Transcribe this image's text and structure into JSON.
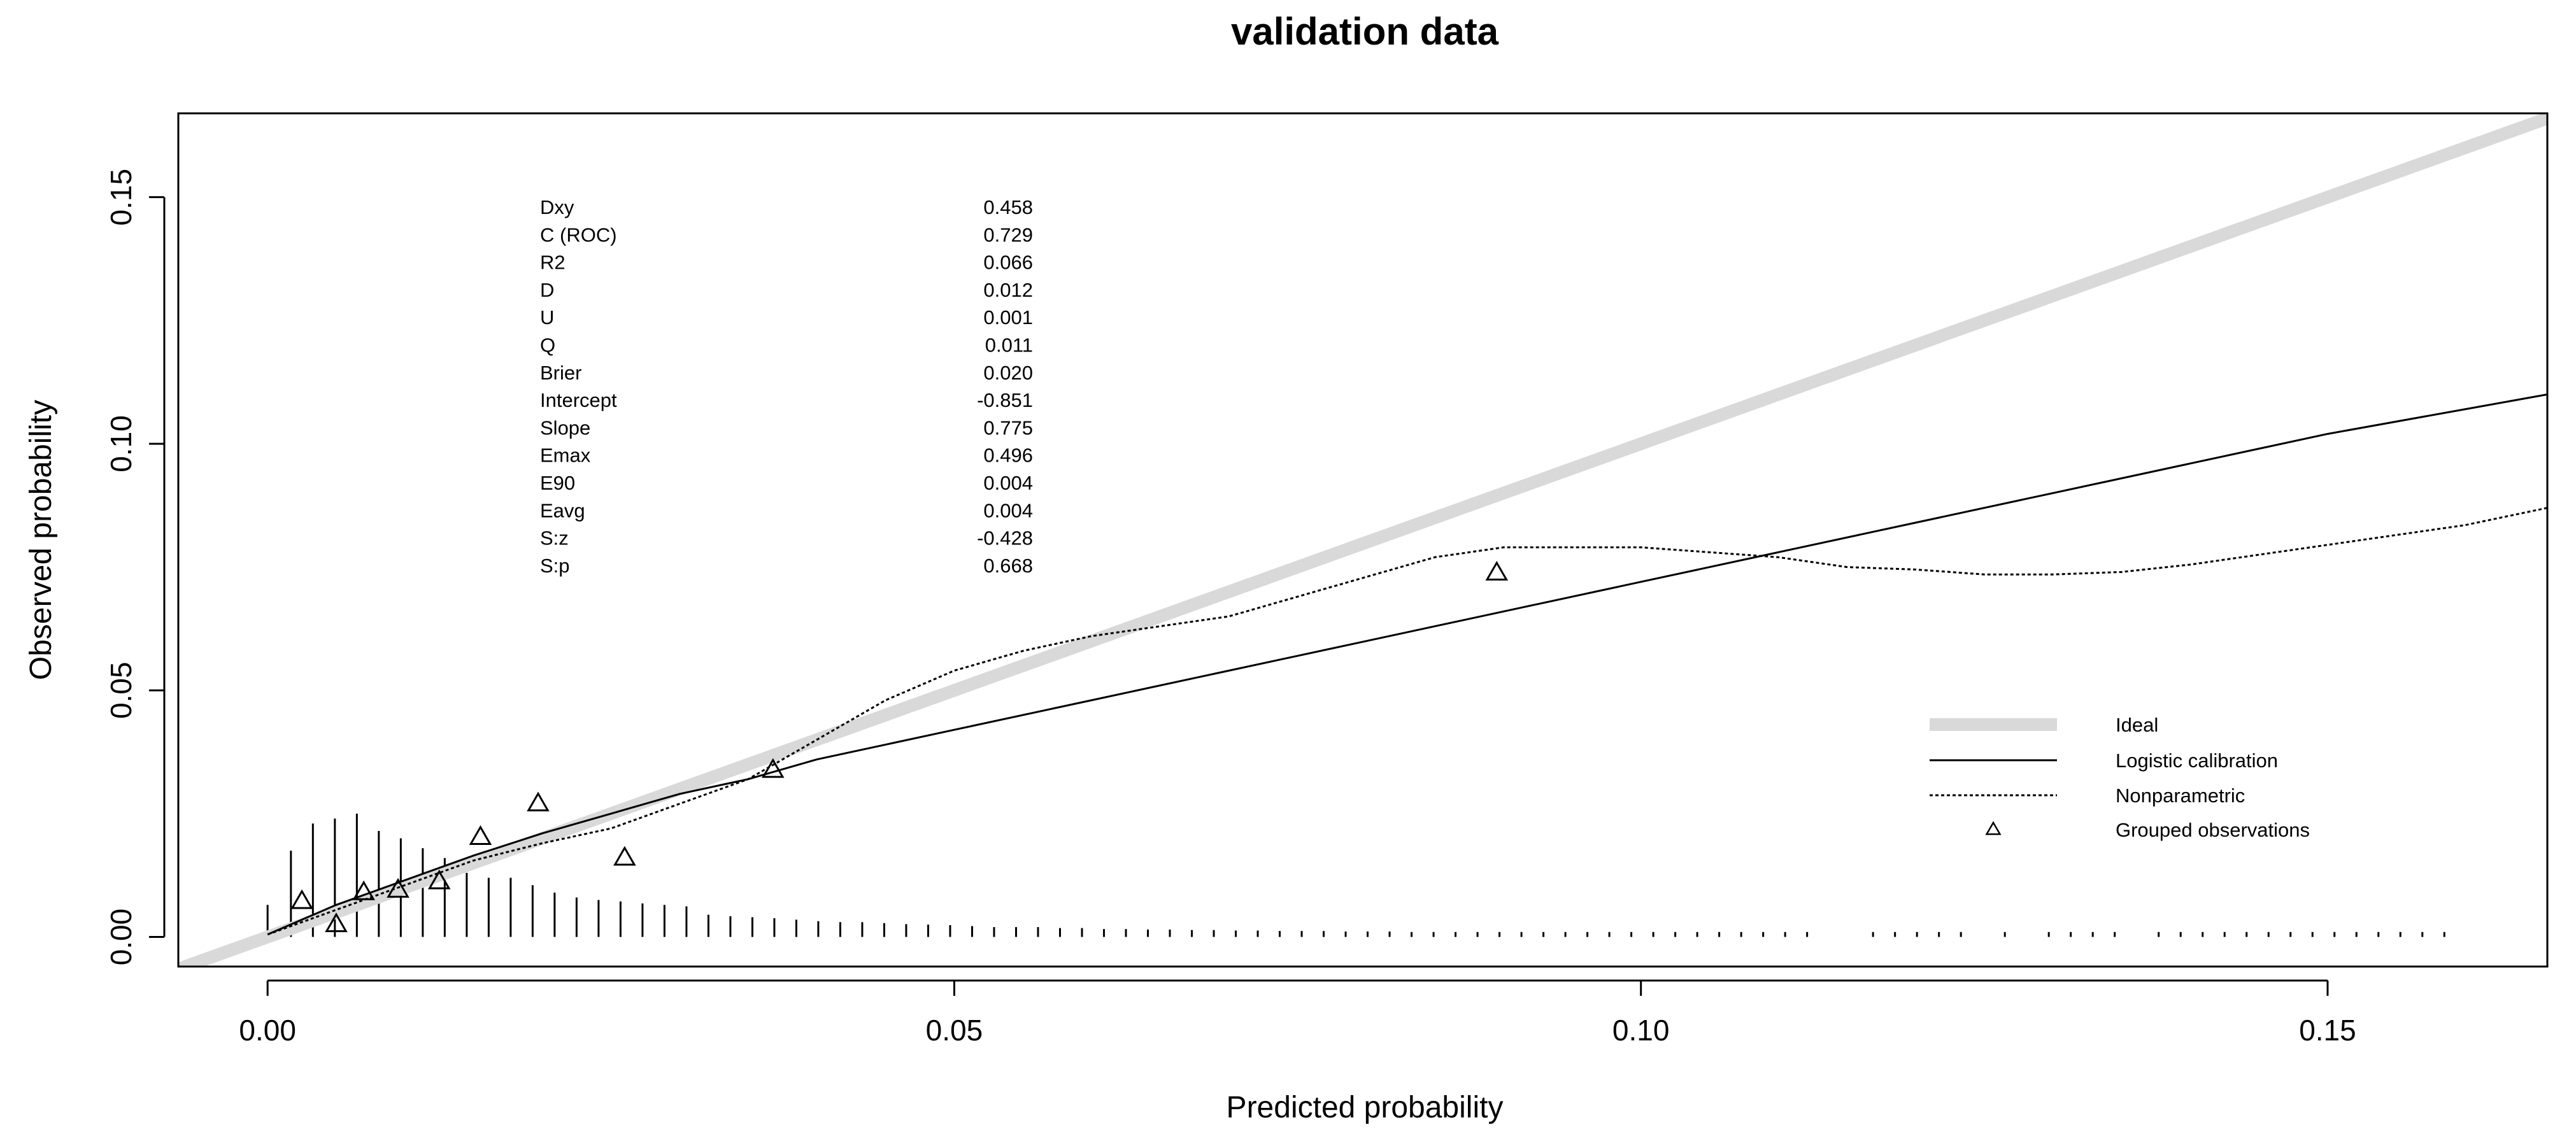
{
  "chart_data": {
    "type": "line",
    "title": "validation data",
    "xlabel": "Predicted probability",
    "ylabel": "Observed probability",
    "xlim": [
      -0.0065,
      0.166
    ],
    "ylim": [
      -0.006,
      0.167
    ],
    "xticks": [
      0.0,
      0.05,
      0.1,
      0.15
    ],
    "xtick_labels": [
      "0.00",
      "0.05",
      "0.10",
      "0.15"
    ],
    "yticks": [
      0.0,
      0.05,
      0.1,
      0.15
    ],
    "ytick_labels": [
      "0.00",
      "0.05",
      "0.10",
      "0.15"
    ],
    "stats": [
      {
        "label": "Dxy",
        "value": "0.458"
      },
      {
        "label": "C (ROC)",
        "value": "0.729"
      },
      {
        "label": "R2",
        "value": "0.066"
      },
      {
        "label": "D",
        "value": "0.012"
      },
      {
        "label": "U",
        "value": "0.001"
      },
      {
        "label": "Q",
        "value": "0.011"
      },
      {
        "label": "Brier",
        "value": "0.020"
      },
      {
        "label": "Intercept",
        "value": "-0.851"
      },
      {
        "label": "Slope",
        "value": "0.775"
      },
      {
        "label": "Emax",
        "value": "0.496"
      },
      {
        "label": "E90",
        "value": "0.004"
      },
      {
        "label": "Eavg",
        "value": "0.004"
      },
      {
        "label": "S:z",
        "value": "-0.428"
      },
      {
        "label": "S:p",
        "value": "0.668"
      }
    ],
    "legend": {
      "position": "bottom-right",
      "entries": [
        "Ideal",
        "Logistic calibration",
        "Nonparametric",
        "Grouped observations"
      ]
    },
    "series": [
      {
        "name": "Ideal",
        "style": "thick-gray",
        "color": "#d9d9d9",
        "x": [
          -0.0065,
          0.166
        ],
        "y": [
          -0.0065,
          0.166
        ]
      },
      {
        "name": "Logistic calibration",
        "style": "solid",
        "color": "#000000",
        "x": [
          0.0,
          0.005,
          0.01,
          0.015,
          0.02,
          0.025,
          0.03,
          0.035,
          0.04,
          0.05,
          0.06,
          0.07,
          0.08,
          0.09,
          0.1,
          0.11,
          0.12,
          0.13,
          0.14,
          0.15,
          0.16,
          0.166
        ],
        "y": [
          0.0005,
          0.0065,
          0.0115,
          0.0165,
          0.021,
          0.025,
          0.029,
          0.032,
          0.036,
          0.042,
          0.048,
          0.054,
          0.06,
          0.066,
          0.072,
          0.078,
          0.084,
          0.09,
          0.096,
          0.102,
          0.107,
          0.11
        ]
      },
      {
        "name": "Nonparametric",
        "style": "dotted",
        "color": "#000000",
        "x": [
          0.0,
          0.005,
          0.01,
          0.015,
          0.02,
          0.025,
          0.03,
          0.035,
          0.04,
          0.045,
          0.05,
          0.055,
          0.06,
          0.07,
          0.08,
          0.085,
          0.09,
          0.095,
          0.1,
          0.105,
          0.11,
          0.115,
          0.12,
          0.125,
          0.13,
          0.135,
          0.14,
          0.145,
          0.15,
          0.155,
          0.16,
          0.166
        ],
        "y": [
          0.0005,
          0.0055,
          0.0105,
          0.0155,
          0.019,
          0.022,
          0.027,
          0.032,
          0.04,
          0.048,
          0.054,
          0.058,
          0.061,
          0.065,
          0.073,
          0.077,
          0.079,
          0.079,
          0.079,
          0.078,
          0.077,
          0.075,
          0.0745,
          0.0735,
          0.0735,
          0.074,
          0.0755,
          0.0775,
          0.0795,
          0.0815,
          0.0835,
          0.087
        ]
      }
    ],
    "grouped_observations": {
      "x": [
        0.0025,
        0.005,
        0.007,
        0.0095,
        0.0125,
        0.0155,
        0.0197,
        0.026,
        0.0368,
        0.0895
      ],
      "y": [
        0.0072,
        0.0025,
        0.009,
        0.0095,
        0.0112,
        0.0202,
        0.027,
        0.016,
        0.0338,
        0.0738
      ]
    },
    "rug": {
      "x": [
        0.0,
        0.0017,
        0.0033,
        0.0049,
        0.0065,
        0.0081,
        0.0097,
        0.0113,
        0.0129,
        0.0145,
        0.0161,
        0.0177,
        0.0193,
        0.0209,
        0.0225,
        0.0241,
        0.0257,
        0.0273,
        0.0289,
        0.0305,
        0.0321,
        0.0337,
        0.0353,
        0.0369,
        0.0385,
        0.0401,
        0.0417,
        0.0433,
        0.0449,
        0.0465,
        0.0481,
        0.0497,
        0.0513,
        0.0529,
        0.0545,
        0.0561,
        0.0577,
        0.0593,
        0.0609,
        0.0625,
        0.0641,
        0.0657,
        0.0673,
        0.0689,
        0.0705,
        0.0721,
        0.0737,
        0.0753,
        0.0769,
        0.0785,
        0.0801,
        0.0817,
        0.0833,
        0.0849,
        0.0865,
        0.0881,
        0.0897,
        0.0913,
        0.0929,
        0.0945,
        0.0961,
        0.0977,
        0.0993,
        0.1009,
        0.1025,
        0.1041,
        0.1057,
        0.1073,
        0.1089,
        0.1105,
        0.1121,
        0.1169,
        0.1185,
        0.1201,
        0.1217,
        0.1233,
        0.1265,
        0.1297,
        0.1313,
        0.1329,
        0.1345,
        0.1377,
        0.1393,
        0.1409,
        0.1425,
        0.1441,
        0.1457,
        0.1473,
        0.1489,
        0.1505,
        0.1521,
        0.1537,
        0.1553,
        0.1569,
        0.1585
      ],
      "freq": [
        0.0065,
        0.0175,
        0.023,
        0.024,
        0.025,
        0.0215,
        0.02,
        0.018,
        0.016,
        0.013,
        0.012,
        0.012,
        0.0105,
        0.009,
        0.008,
        0.0075,
        0.0072,
        0.0068,
        0.0065,
        0.0062,
        0.0045,
        0.0042,
        0.004,
        0.0038,
        0.0035,
        0.0032,
        0.003,
        0.003,
        0.0028,
        0.0026,
        0.0025,
        0.0024,
        0.0022,
        0.002,
        0.002,
        0.002,
        0.0018,
        0.0018,
        0.0016,
        0.0016,
        0.0015,
        0.0015,
        0.0014,
        0.0014,
        0.0013,
        0.0013,
        0.0012,
        0.0012,
        0.0012,
        0.0011,
        0.0011,
        0.0011,
        0.001,
        0.001,
        0.001,
        0.001,
        0.001,
        0.001,
        0.001,
        0.001,
        0.001,
        0.001,
        0.001,
        0.001,
        0.001,
        0.001,
        0.001,
        0.001,
        0.001,
        0.001,
        0.001,
        0.001,
        0.001,
        0.001,
        0.001,
        0.001,
        0.001,
        0.001,
        0.001,
        0.001,
        0.001,
        0.001,
        0.001,
        0.001,
        0.001,
        0.001,
        0.001,
        0.001,
        0.001,
        0.001,
        0.001,
        0.001,
        0.001,
        0.001,
        0.001
      ]
    }
  }
}
